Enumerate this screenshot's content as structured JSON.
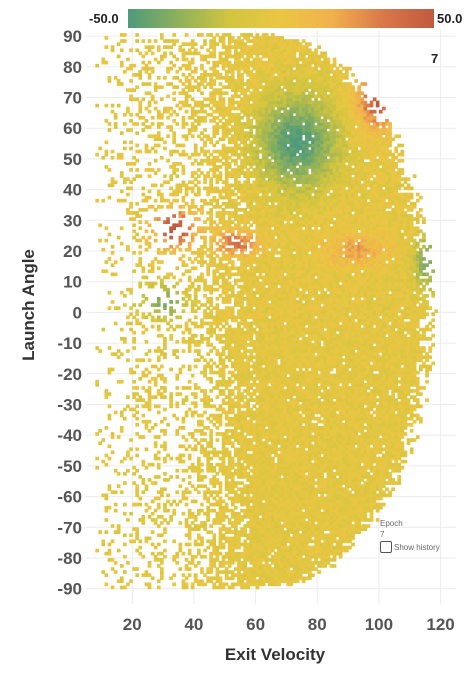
{
  "chart_data": {
    "type": "heatmap",
    "xlabel": "Exit Velocity",
    "ylabel": "Launch Angle",
    "xlim": [
      5,
      125
    ],
    "ylim": [
      -95,
      92
    ],
    "x_ticks": [
      "20",
      "40",
      "60",
      "80",
      "100",
      "120"
    ],
    "y_ticks": [
      "90",
      "80",
      "70",
      "60",
      "50",
      "40",
      "30",
      "20",
      "10",
      "0",
      "-10",
      "-20",
      "-30",
      "-40",
      "-50",
      "-60",
      "-70",
      "-80",
      "-90"
    ],
    "x_tick_values": [
      20,
      40,
      60,
      80,
      100,
      120
    ],
    "y_tick_values": [
      90,
      80,
      70,
      60,
      50,
      40,
      30,
      20,
      10,
      0,
      -10,
      -20,
      -30,
      -40,
      -50,
      -60,
      -70,
      -80,
      -90
    ],
    "grid": true,
    "color_scale": {
      "min": -50.0,
      "max": 50.0,
      "min_label": "-50.0",
      "max_label": "50.0",
      "colors": [
        "#4e9a7a",
        "#8fb15b",
        "#d2c53f",
        "#ebc643",
        "#f1b14d",
        "#d9784a",
        "#c05a3e"
      ]
    },
    "legend_position": "top",
    "cell_size": 1
  },
  "epoch_badge": "7",
  "controls": {
    "epoch_label": "Epoch",
    "epoch_value": "7",
    "show_history_label": "Show history"
  }
}
